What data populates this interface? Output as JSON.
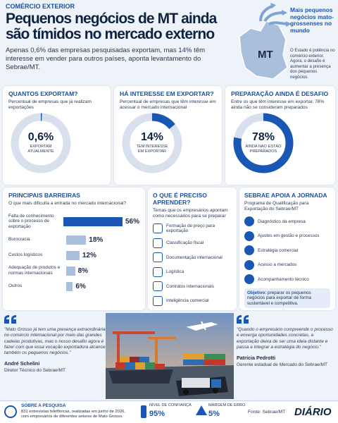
{
  "header": {
    "kicker": "COMÉRCIO EXTERIOR",
    "title": "Pequenos negócios de MT ainda são tímidos no mercado externo",
    "lead": "Apenas 0,6% das empresas pesquisadas exportam, mas 14% têm interesse em vender para outros países, aponta levantamento do Sebrae/MT.",
    "map_label": "MT",
    "side_title": "Mais pequenos negócios mato-grossenses no mundo",
    "side_text": "O Estado é potência no comércio exterior. Agora, o desafio é aumentar a presença dos pequenos negócios."
  },
  "donuts": [
    {
      "title": "QUANTOS EXPORTAM?",
      "description": "Percentual de empresas que já realizam exportações",
      "value": 0.6,
      "value_label": "0,6%",
      "caption": "EXPORTAM ATUALMENTE"
    },
    {
      "title": "HÁ INTERESSE EM EXPORTAR?",
      "description": "Percentual de empresas que têm interesse em acessar o mercado internacional",
      "value": 14,
      "value_label": "14%",
      "caption": "TÊM INTERESSE EM EXPORTAR"
    },
    {
      "title": "PREPARAÇÃO AINDA É DESAFIO",
      "description": "Entre os que têm interesse em exportar, 78% ainda não se consideram preparados",
      "value": 78,
      "value_label": "78%",
      "caption": "AINDA NÃO ESTÃO PREPARADOS"
    }
  ],
  "barriers": {
    "title": "PRINCIPAIS BARREIRAS",
    "question": "O que mais dificulta a entrada no mercado internacional?",
    "items": [
      {
        "label": "Falta de conhecimento sobre o processo de exportação",
        "value": 56,
        "value_label": "56%"
      },
      {
        "label": "Burocracia",
        "value": 18,
        "value_label": "18%"
      },
      {
        "label": "Custos logísticos",
        "value": 12,
        "value_label": "12%"
      },
      {
        "label": "Adequação de produtos e normas internacionais",
        "value": 8,
        "value_label": "8%"
      },
      {
        "label": "Outros",
        "value": 6,
        "value_label": "6%"
      }
    ]
  },
  "learn": {
    "title": "O QUE É PRECISO APRENDER?",
    "description": "Temas que os empresários apontam como necessários para se preparar",
    "items": [
      "Formação de preço para exportação",
      "Classificação fiscal",
      "Documentação internacional",
      "Logística",
      "Contratos internacionais",
      "Inteligência comercial"
    ]
  },
  "sebrae": {
    "title": "SEBRAE APOIA A JORNADA",
    "description": "Programa de Qualificação para Exportação do Sebrae/MT",
    "steps": [
      "Diagnóstico da empresa",
      "Ajustes em gestão e processos",
      "Estratégia comercial",
      "Acesso a mercados",
      "Acompanhamento técnico"
    ],
    "objective_label": "Objetivo:",
    "objective_text": "preparar os pequenos negócios para exportar de forma sustentável e competitiva."
  },
  "quotes": [
    {
      "text": "\"Mato Grosso já tem uma presença extraordinária no comércio internacional por meio das grandes cadeias produtivas, mas o nosso desafio agora é fazer com que essa vocação exportadora alcance também os pequenos negócios.\"",
      "name": "André Schelini",
      "role": "Diretor Técnico do Sebrae/MT"
    },
    {
      "text": "\"Quando o empresário compreende o processo e enxerga oportunidades concretas, a exportação deixa de ser uma ideia distante e passa a integrar a estratégia do negócio.\"",
      "name": "Patrícia Pedrotti",
      "role": "Gerente estadual de Mercado do Sebrae/MT"
    }
  ],
  "footer": {
    "survey_title": "SOBRE A PESQUISA",
    "survey_text": "831 entrevistas telefônicas, realizadas em junho de 2026, com empresários de diferentes setores de Mato Grosso.",
    "confidence_label": "NÍVEL DE CONFIANÇA",
    "confidence_value": "95%",
    "margin_label": "MARGEM DE ERRO",
    "margin_value": "5%",
    "source": "Fonte: Sebrae/MT",
    "brand": "DIÁRIO"
  }
}
